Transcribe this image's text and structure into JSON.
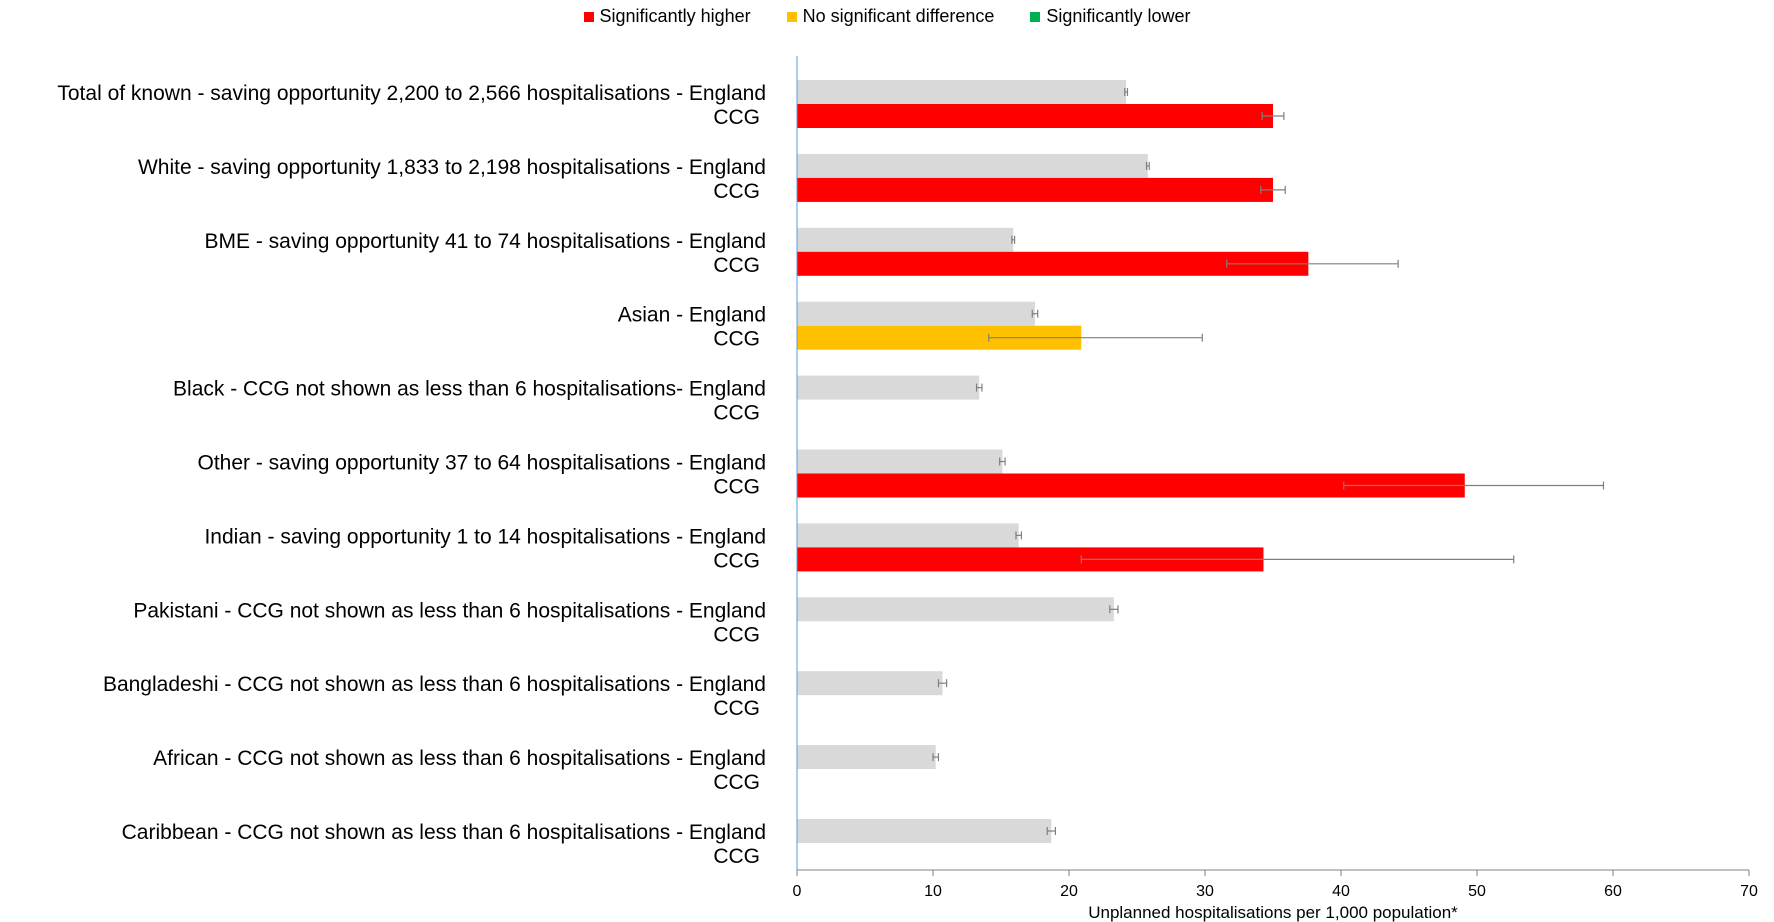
{
  "colors": {
    "higher": "#ff0000",
    "no_difference": "#ffc000",
    "lower": "#00b050",
    "england": "#d9d9d9",
    "axis": "#5b9bd5",
    "errorbar": "#7f7f7f"
  },
  "legend": [
    {
      "key": "higher",
      "label": "Significantly higher"
    },
    {
      "key": "no_difference",
      "label": "No significant difference"
    },
    {
      "key": "lower",
      "label": "Significantly lower"
    }
  ],
  "chart_data": {
    "type": "bar",
    "orientation": "horizontal",
    "title": "",
    "xlabel": "Unplanned hospitalisations per 1,000 population*",
    "ylabel": "",
    "xlim": [
      0,
      70
    ],
    "xticks": [
      0,
      10,
      20,
      30,
      40,
      50,
      60,
      70
    ],
    "grid": false,
    "legend_position": "top",
    "groups": [
      {
        "label": "Total of known - saving opportunity 2,200 to 2,566 hospitalisations - England",
        "ccg_label": "CCG",
        "england": {
          "value": 24.2,
          "ci": [
            24.1,
            24.3
          ]
        },
        "ccg": {
          "value": 35.0,
          "ci": [
            34.2,
            35.8
          ],
          "significance": "higher"
        }
      },
      {
        "label": "White - saving opportunity 1,833 to 2,198 hospitalisations - England",
        "ccg_label": "CCG",
        "england": {
          "value": 25.8,
          "ci": [
            25.7,
            25.9
          ]
        },
        "ccg": {
          "value": 35.0,
          "ci": [
            34.1,
            35.9
          ],
          "significance": "higher"
        }
      },
      {
        "label": "BME - saving opportunity 41 to 74 hospitalisations - England",
        "ccg_label": "CCG",
        "england": {
          "value": 15.9,
          "ci": [
            15.8,
            16.0
          ]
        },
        "ccg": {
          "value": 37.6,
          "ci": [
            31.6,
            44.2
          ],
          "significance": "higher"
        }
      },
      {
        "label": "Asian - England",
        "ccg_label": "CCG",
        "england": {
          "value": 17.5,
          "ci": [
            17.3,
            17.7
          ]
        },
        "ccg": {
          "value": 20.9,
          "ci": [
            14.1,
            29.8
          ],
          "significance": "no_difference"
        }
      },
      {
        "label": "Black - CCG not shown as less than 6 hospitalisations- England",
        "ccg_label": "CCG",
        "england": {
          "value": 13.4,
          "ci": [
            13.2,
            13.6
          ]
        },
        "ccg": null
      },
      {
        "label": "Other - saving opportunity 37 to 64 hospitalisations - England",
        "ccg_label": "CCG",
        "england": {
          "value": 15.1,
          "ci": [
            14.9,
            15.3
          ]
        },
        "ccg": {
          "value": 49.1,
          "ci": [
            40.2,
            59.3
          ],
          "significance": "higher"
        }
      },
      {
        "label": "Indian - saving opportunity 1 to 14 hospitalisations - England",
        "ccg_label": "CCG",
        "england": {
          "value": 16.3,
          "ci": [
            16.1,
            16.5
          ]
        },
        "ccg": {
          "value": 34.3,
          "ci": [
            20.9,
            52.7
          ],
          "significance": "higher"
        }
      },
      {
        "label": "Pakistani - CCG not shown as less than 6 hospitalisations - England",
        "ccg_label": "CCG",
        "england": {
          "value": 23.3,
          "ci": [
            23.0,
            23.6
          ]
        },
        "ccg": null
      },
      {
        "label": "Bangladeshi - CCG not shown as less than 6 hospitalisations - England",
        "ccg_label": "CCG",
        "england": {
          "value": 10.7,
          "ci": [
            10.4,
            11.0
          ]
        },
        "ccg": null
      },
      {
        "label": "African - CCG not shown as less than 6 hospitalisations - England",
        "ccg_label": "CCG",
        "england": {
          "value": 10.2,
          "ci": [
            10.0,
            10.4
          ]
        },
        "ccg": null
      },
      {
        "label": "Caribbean - CCG not shown as less than 6 hospitalisations - England",
        "ccg_label": "CCG",
        "england": {
          "value": 18.7,
          "ci": [
            18.4,
            19.0
          ]
        },
        "ccg": null
      }
    ]
  }
}
